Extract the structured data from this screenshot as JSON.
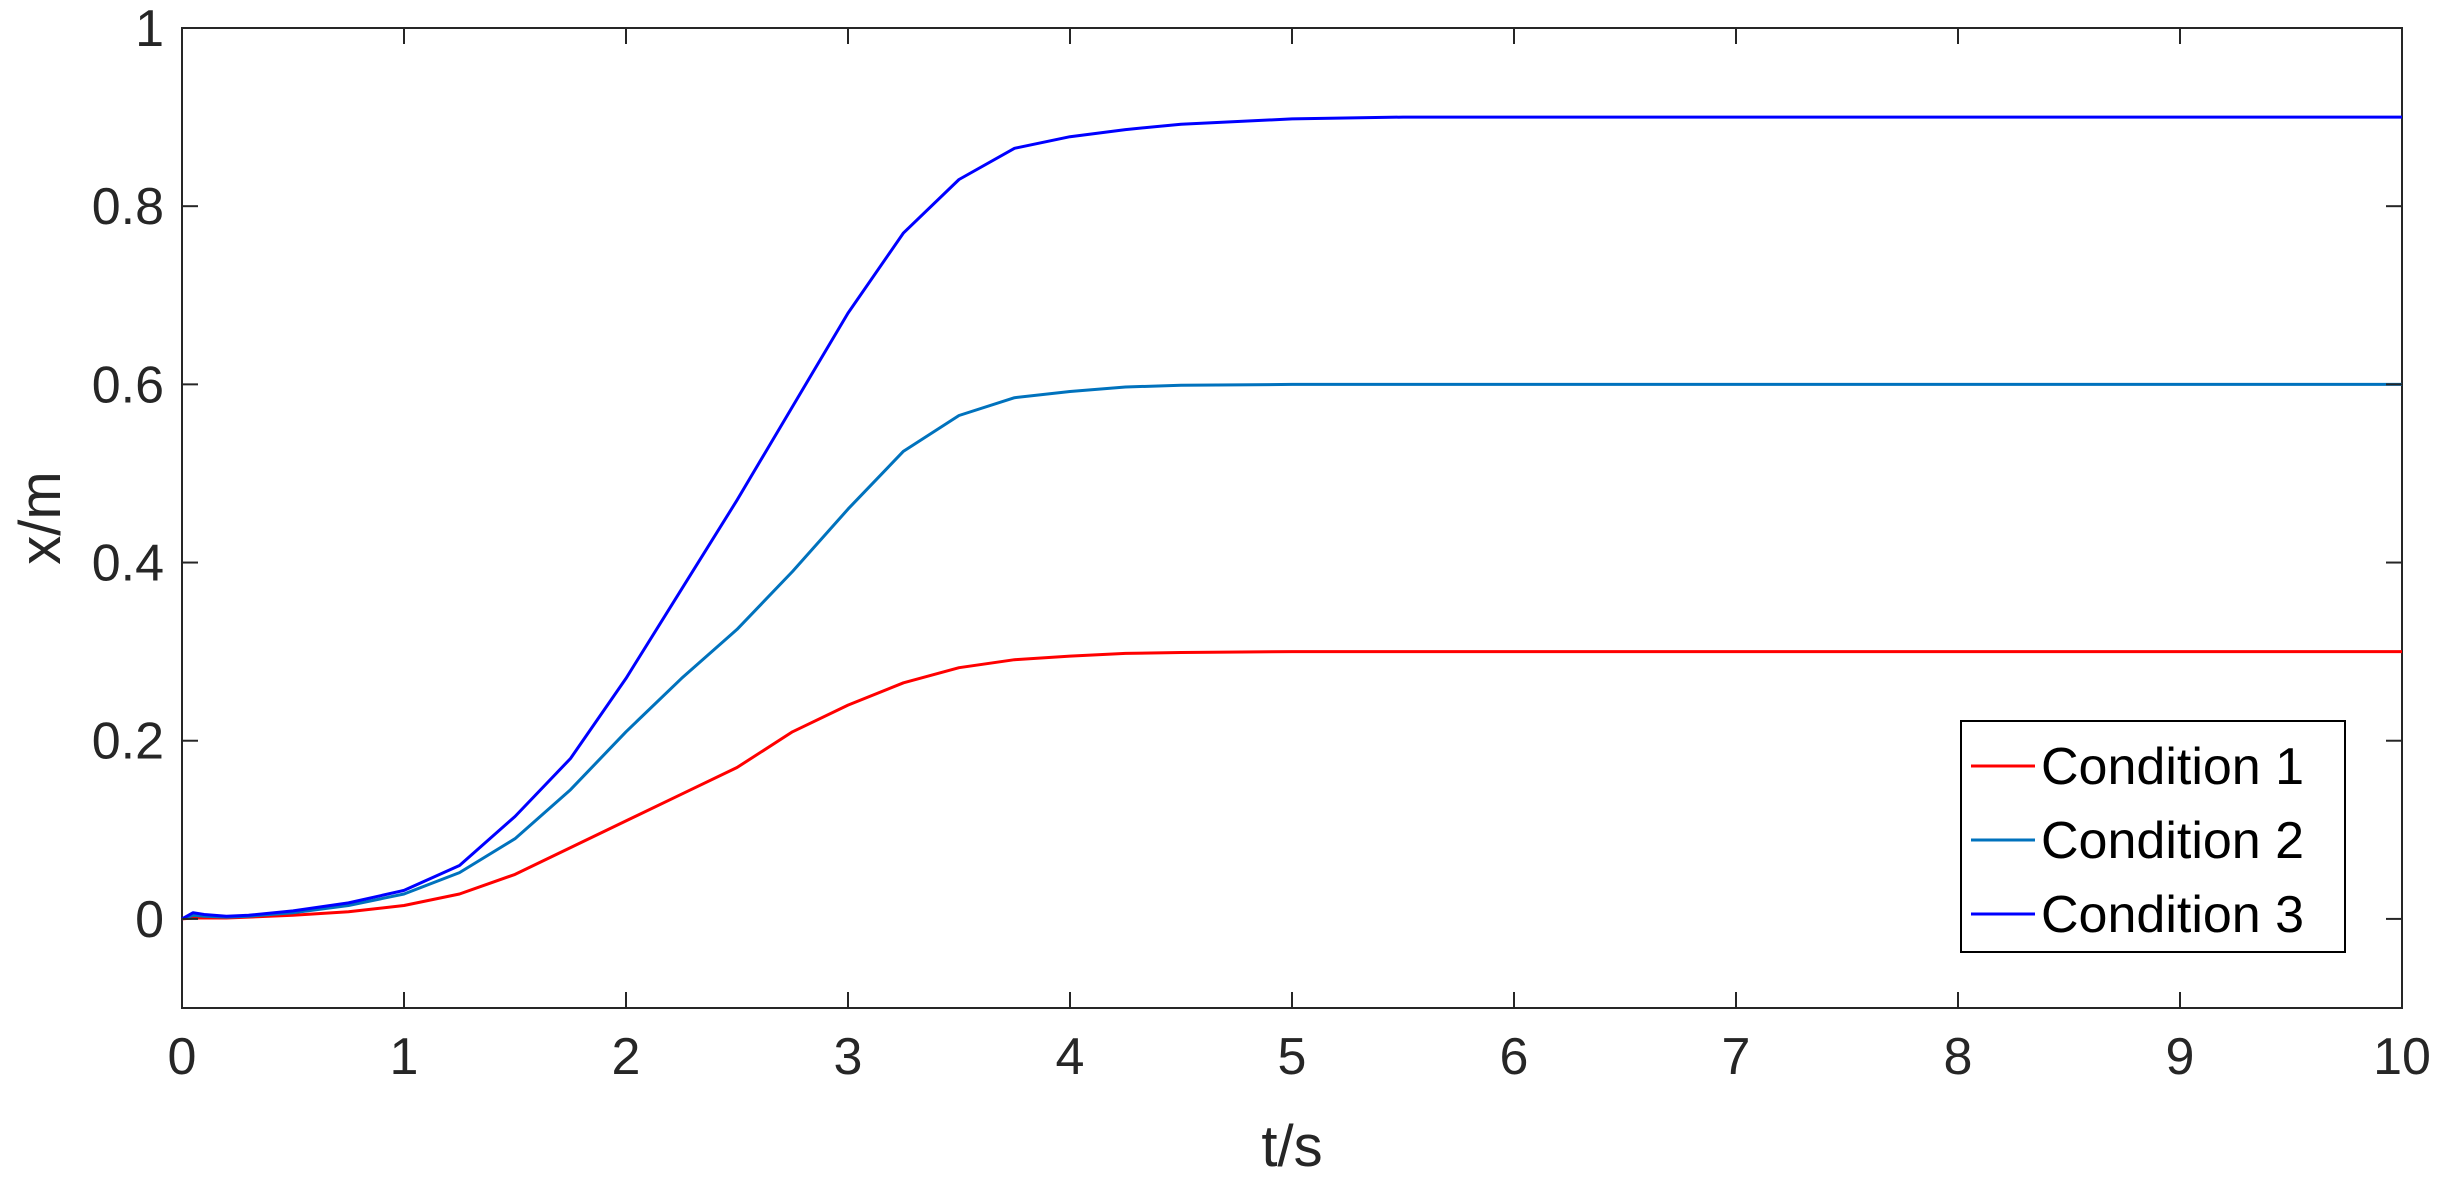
{
  "chart_data": {
    "type": "line",
    "title": "",
    "xlabel": "t/s",
    "ylabel": "x/m",
    "xlim": [
      0,
      10
    ],
    "ylim": [
      -0.1,
      1
    ],
    "xticks": [
      "0",
      "1",
      "2",
      "3",
      "4",
      "5",
      "6",
      "7",
      "8",
      "9",
      "10"
    ],
    "yticks": [
      "0",
      "0.2",
      "0.4",
      "0.6",
      "0.8",
      "1"
    ],
    "grid": false,
    "legend_position": "bottom-right",
    "x": [
      0,
      0.05,
      0.1,
      0.2,
      0.3,
      0.5,
      0.75,
      1.0,
      1.25,
      1.5,
      1.75,
      2.0,
      2.25,
      2.5,
      2.75,
      3.0,
      3.25,
      3.5,
      3.75,
      4.0,
      4.25,
      4.5,
      5.0,
      5.5,
      6,
      7,
      8,
      9,
      10
    ],
    "series": [
      {
        "name": "Condition 1",
        "color": "#ff0000",
        "values": [
          0,
          0.001,
          0.001,
          0.001,
          0.002,
          0.004,
          0.008,
          0.015,
          0.028,
          0.05,
          0.08,
          0.11,
          0.14,
          0.17,
          0.21,
          0.24,
          0.265,
          0.282,
          0.291,
          0.295,
          0.298,
          0.299,
          0.3,
          0.3,
          0.3,
          0.3,
          0.3,
          0.3,
          0.3
        ]
      },
      {
        "name": "Condition 2",
        "color": "#0072bd",
        "values": [
          0,
          0.004,
          0.003,
          0.002,
          0.003,
          0.007,
          0.015,
          0.028,
          0.052,
          0.09,
          0.145,
          0.21,
          0.27,
          0.325,
          0.39,
          0.46,
          0.525,
          0.565,
          0.585,
          0.592,
          0.597,
          0.599,
          0.6,
          0.6,
          0.6,
          0.6,
          0.6,
          0.6,
          0.6
        ]
      },
      {
        "name": "Condition 3",
        "color": "#0000ff",
        "values": [
          0,
          0.007,
          0.005,
          0.003,
          0.004,
          0.009,
          0.018,
          0.032,
          0.06,
          0.115,
          0.18,
          0.27,
          0.37,
          0.47,
          0.575,
          0.68,
          0.77,
          0.83,
          0.865,
          0.878,
          0.886,
          0.892,
          0.898,
          0.9,
          0.9,
          0.9,
          0.9,
          0.9,
          0.9
        ]
      }
    ]
  }
}
